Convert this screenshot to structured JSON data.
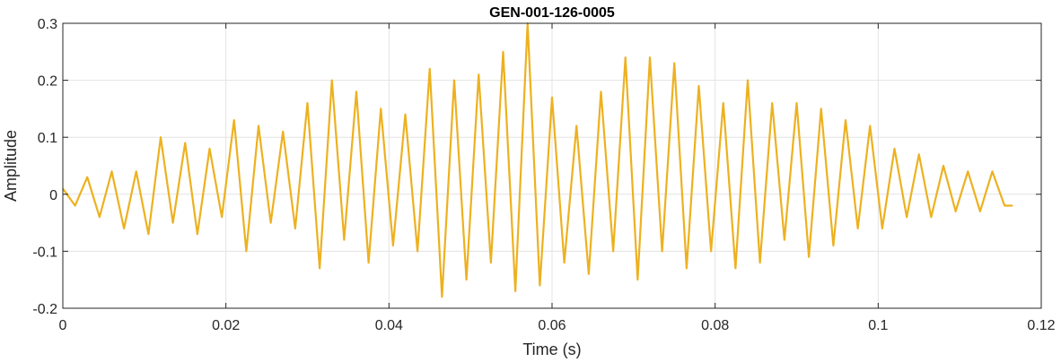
{
  "chart_data": {
    "type": "line",
    "title": "GEN-001-126-0005",
    "xlabel": "Time (s)",
    "ylabel": "Amplitude",
    "xlim": [
      0,
      0.12
    ],
    "ylim": [
      -0.2,
      0.3
    ],
    "xticks": [
      0,
      0.02,
      0.04,
      0.06,
      0.08,
      0.1,
      0.12
    ],
    "xtick_labels": [
      "0",
      "0.02",
      "0.04",
      "0.06",
      "0.08",
      "0.1",
      "0.12"
    ],
    "yticks": [
      -0.2,
      -0.1,
      0,
      0.1,
      0.2,
      0.3
    ],
    "ytick_labels": [
      "-0.2",
      "-0.1",
      "0",
      "0.1",
      "0.2",
      "0.3"
    ],
    "grid": true,
    "line_color": "#EDB120",
    "series": [
      {
        "x": [
          0,
          0.0015,
          0.003,
          0.0045,
          0.006,
          0.0075,
          0.009,
          0.0105,
          0.012,
          0.0135,
          0.015,
          0.0165,
          0.018,
          0.0195,
          0.021,
          0.0225,
          0.024,
          0.0255,
          0.027,
          0.0285,
          0.03,
          0.0315,
          0.033,
          0.0345,
          0.036,
          0.0375,
          0.039,
          0.0405,
          0.042,
          0.0435,
          0.045,
          0.0465,
          0.048,
          0.0495,
          0.051,
          0.0525,
          0.054,
          0.0555,
          0.057,
          0.0585,
          0.06,
          0.0615,
          0.063,
          0.0645,
          0.066,
          0.0675,
          0.069,
          0.0705,
          0.072,
          0.0735,
          0.075,
          0.0765,
          0.078,
          0.0795,
          0.081,
          0.0825,
          0.084,
          0.0855,
          0.087,
          0.0885,
          0.09,
          0.0915,
          0.093,
          0.0945,
          0.096,
          0.0975,
          0.099,
          0.1005,
          0.102,
          0.1035,
          0.105,
          0.1065,
          0.108,
          0.1095,
          0.111,
          0.1125,
          0.114,
          0.1155,
          0.1165
        ],
        "y": [
          0.01,
          -0.02,
          0.03,
          -0.04,
          0.04,
          -0.06,
          0.04,
          -0.07,
          0.1,
          -0.05,
          0.09,
          -0.07,
          0.08,
          -0.04,
          0.13,
          -0.1,
          0.12,
          -0.05,
          0.11,
          -0.06,
          0.16,
          -0.13,
          0.2,
          -0.08,
          0.18,
          -0.12,
          0.15,
          -0.09,
          0.14,
          -0.1,
          0.22,
          -0.18,
          0.2,
          -0.15,
          0.21,
          -0.12,
          0.25,
          -0.17,
          0.3,
          -0.16,
          0.17,
          -0.12,
          0.12,
          -0.14,
          0.18,
          -0.1,
          0.24,
          -0.15,
          0.24,
          -0.1,
          0.23,
          -0.13,
          0.19,
          -0.1,
          0.16,
          -0.13,
          0.2,
          -0.12,
          0.16,
          -0.08,
          0.16,
          -0.11,
          0.15,
          -0.09,
          0.13,
          -0.06,
          0.12,
          -0.06,
          0.08,
          -0.04,
          0.07,
          -0.04,
          0.05,
          -0.03,
          0.04,
          -0.03,
          0.04,
          -0.02,
          -0.02
        ]
      }
    ]
  }
}
